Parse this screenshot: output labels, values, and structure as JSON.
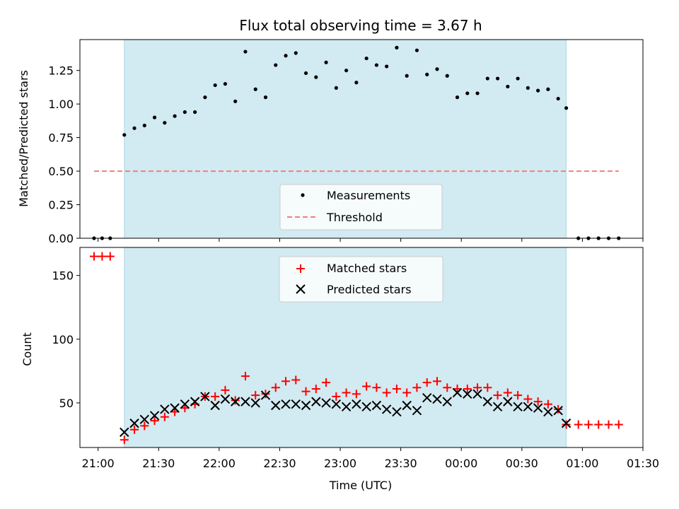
{
  "chart_data": [
    {
      "type": "scatter",
      "title": "Flux total observing time = 3.67 h",
      "ylabel": "Matched/Predicted stars",
      "xlabel": "",
      "xlim": [
        "20:51",
        "01:30"
      ],
      "ylim": [
        0,
        1.48
      ],
      "yticks": [
        "0.00",
        "0.25",
        "0.50",
        "0.75",
        "1.00",
        "1.25"
      ],
      "shaded_span": [
        "21:13",
        "00:52"
      ],
      "legend_position": "lower-center",
      "colors": {
        "span": "#add8e6",
        "measurements": "#000000",
        "threshold": "#f08080"
      },
      "series": [
        {
          "name": "Measurements",
          "marker": "dot",
          "x": [
            "20:58",
            "21:02",
            "21:06",
            "21:13",
            "21:18",
            "21:23",
            "21:28",
            "21:33",
            "21:38",
            "21:43",
            "21:48",
            "21:53",
            "21:58",
            "22:03",
            "22:08",
            "22:13",
            "22:18",
            "22:23",
            "22:28",
            "22:33",
            "22:38",
            "22:43",
            "22:48",
            "22:53",
            "22:58",
            "23:03",
            "23:08",
            "23:13",
            "23:18",
            "23:23",
            "23:28",
            "23:33",
            "23:38",
            "23:43",
            "23:48",
            "23:53",
            "23:58",
            "00:03",
            "00:08",
            "00:13",
            "00:18",
            "00:23",
            "00:28",
            "00:33",
            "00:38",
            "00:43",
            "00:48",
            "00:52",
            "00:58",
            "01:03",
            "01:08",
            "01:13",
            "01:18"
          ],
          "y": [
            0,
            0,
            0,
            0.77,
            0.82,
            0.84,
            0.9,
            0.86,
            0.91,
            0.94,
            0.94,
            1.05,
            1.14,
            1.15,
            1.02,
            1.39,
            1.11,
            1.05,
            1.29,
            1.36,
            1.38,
            1.23,
            1.2,
            1.31,
            1.12,
            1.25,
            1.16,
            1.34,
            1.29,
            1.28,
            1.42,
            1.21,
            1.4,
            1.22,
            1.26,
            1.21,
            1.05,
            1.08,
            1.08,
            1.19,
            1.19,
            1.13,
            1.19,
            1.12,
            1.1,
            1.11,
            1.04,
            0.97,
            0,
            0,
            0,
            0,
            0
          ]
        },
        {
          "name": "Threshold",
          "marker": "dashed-line",
          "x": [
            "20:58",
            "01:18"
          ],
          "y": [
            0.5,
            0.5
          ]
        }
      ]
    },
    {
      "type": "scatter",
      "title": "",
      "ylabel": "Count",
      "xlabel": "Time (UTC)",
      "xlim": [
        "20:51",
        "01:30"
      ],
      "ylim": [
        15,
        172
      ],
      "yticks": [
        "50",
        "100",
        "150"
      ],
      "xticks": [
        "21:00",
        "21:30",
        "22:00",
        "22:30",
        "23:00",
        "23:30",
        "00:00",
        "00:30",
        "01:00",
        "01:30"
      ],
      "shaded_span": [
        "21:13",
        "00:52"
      ],
      "legend_position": "upper-center",
      "colors": {
        "span": "#add8e6",
        "matched": "#ff0000",
        "predicted": "#000000"
      },
      "series": [
        {
          "name": "Matched stars",
          "marker": "plus",
          "x": [
            "20:58",
            "21:02",
            "21:06",
            "21:13",
            "21:18",
            "21:23",
            "21:28",
            "21:33",
            "21:38",
            "21:43",
            "21:48",
            "21:53",
            "21:58",
            "22:03",
            "22:08",
            "22:13",
            "22:18",
            "22:23",
            "22:28",
            "22:33",
            "22:38",
            "22:43",
            "22:48",
            "22:53",
            "22:58",
            "23:03",
            "23:08",
            "23:13",
            "23:18",
            "23:23",
            "23:28",
            "23:33",
            "23:38",
            "23:43",
            "23:48",
            "23:53",
            "23:58",
            "00:03",
            "00:08",
            "00:13",
            "00:18",
            "00:23",
            "00:28",
            "00:33",
            "00:38",
            "00:43",
            "00:48",
            "00:52",
            "00:58",
            "01:03",
            "01:08",
            "01:13",
            "01:18"
          ],
          "y": [
            165,
            165,
            165,
            21,
            29,
            32,
            36,
            39,
            43,
            46,
            49,
            55,
            55,
            60,
            52,
            71,
            56,
            57,
            62,
            67,
            68,
            59,
            61,
            66,
            55,
            58,
            57,
            63,
            62,
            58,
            61,
            58,
            62,
            66,
            67,
            62,
            61,
            61,
            62,
            62,
            56,
            58,
            56,
            53,
            51,
            49,
            45,
            33,
            33,
            33,
            33,
            33,
            33
          ]
        },
        {
          "name": "Predicted stars",
          "marker": "x",
          "x": [
            "21:13",
            "21:18",
            "21:23",
            "21:28",
            "21:33",
            "21:38",
            "21:43",
            "21:48",
            "21:53",
            "21:58",
            "22:03",
            "22:08",
            "22:13",
            "22:18",
            "22:23",
            "22:28",
            "22:33",
            "22:38",
            "22:43",
            "22:48",
            "22:53",
            "22:58",
            "23:03",
            "23:08",
            "23:13",
            "23:18",
            "23:23",
            "23:28",
            "23:33",
            "23:38",
            "23:43",
            "23:48",
            "23:53",
            "23:58",
            "00:03",
            "00:08",
            "00:13",
            "00:18",
            "00:23",
            "00:28",
            "00:33",
            "00:38",
            "00:43",
            "00:48",
            "00:52"
          ],
          "y": [
            27,
            34,
            37,
            40,
            45,
            46,
            49,
            51,
            55,
            48,
            53,
            51,
            51,
            50,
            56,
            48,
            49,
            49,
            48,
            51,
            50,
            49,
            47,
            49,
            47,
            48,
            45,
            43,
            48,
            44,
            54,
            53,
            51,
            58,
            57,
            57,
            51,
            47,
            51,
            47,
            47,
            46,
            43,
            44,
            34
          ]
        }
      ]
    }
  ]
}
